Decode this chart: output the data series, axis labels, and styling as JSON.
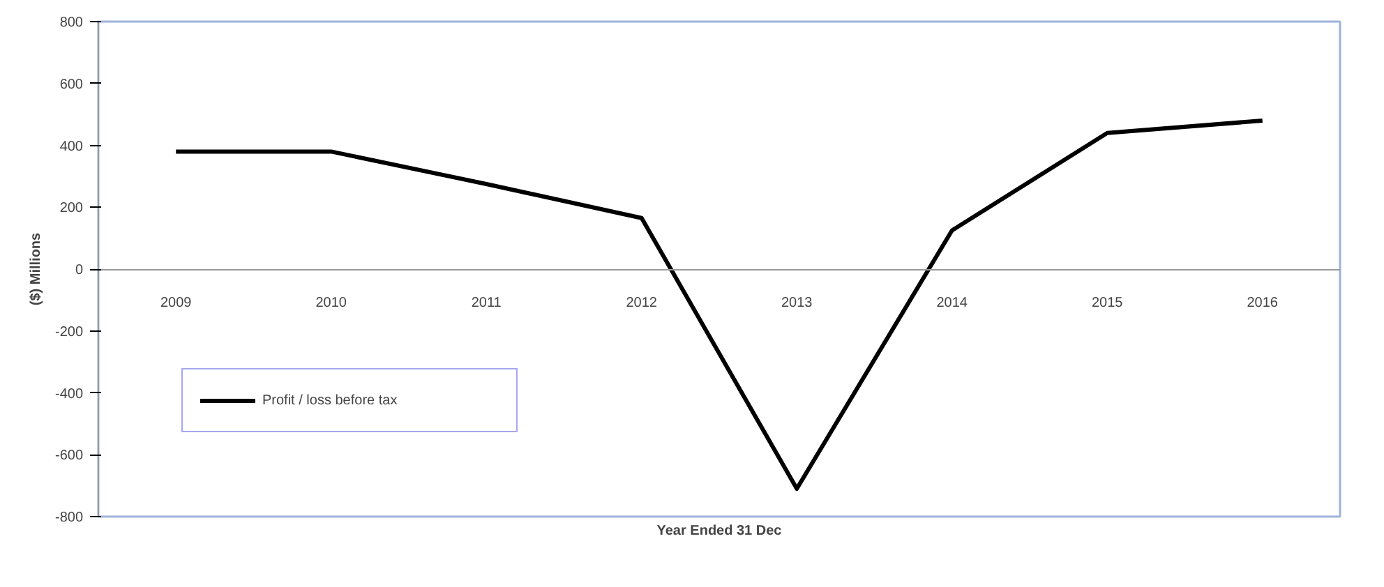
{
  "chart_data": {
    "type": "line",
    "xlabel": "Year Ended 31 Dec",
    "ylabel": "($) Millions",
    "categories": [
      "2009",
      "2010",
      "2011",
      "2012",
      "2013",
      "2014",
      "2015",
      "2016"
    ],
    "series": [
      {
        "name": "Profit / loss before tax",
        "color": "#000000",
        "values": [
          380,
          380,
          275,
          165,
          -710,
          125,
          440,
          480
        ]
      }
    ],
    "ylim": [
      -800,
      800
    ],
    "yticks": [
      -800,
      -600,
      -400,
      -200,
      0,
      200,
      400,
      600,
      800
    ],
    "grid": false,
    "legend": "bottom left",
    "marker": "none",
    "line_style": "solid"
  }
}
